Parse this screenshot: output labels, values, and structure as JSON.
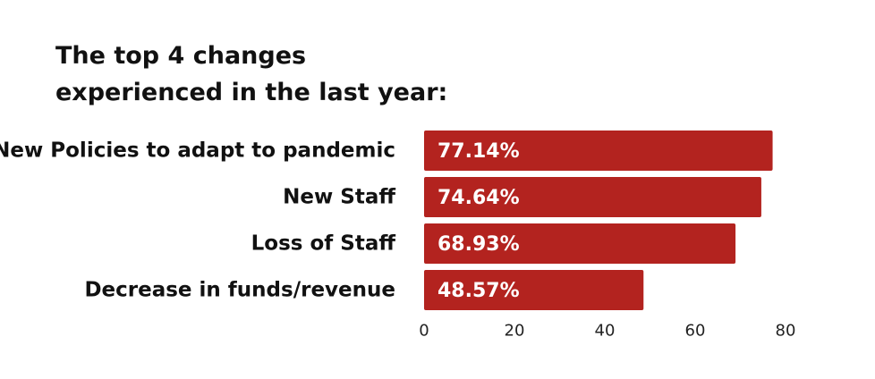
{
  "chart_data": {
    "type": "bar",
    "orientation": "horizontal",
    "title_lines": [
      "The top 4 changes",
      "experienced in the last year:"
    ],
    "categories": [
      "New Policies to adapt to pandemic",
      "New Staff",
      "Loss of Staff",
      "Decrease in funds/revenue"
    ],
    "values": [
      77.14,
      74.64,
      68.93,
      48.57
    ],
    "value_labels": [
      "77.14%",
      "74.64%",
      "68.93%",
      "48.57%"
    ],
    "xlim": [
      0,
      80
    ],
    "x_ticks": [
      "0",
      "20",
      "40",
      "60",
      "80"
    ],
    "grid": false,
    "legend": "none",
    "bar_color": "#b3231f"
  }
}
